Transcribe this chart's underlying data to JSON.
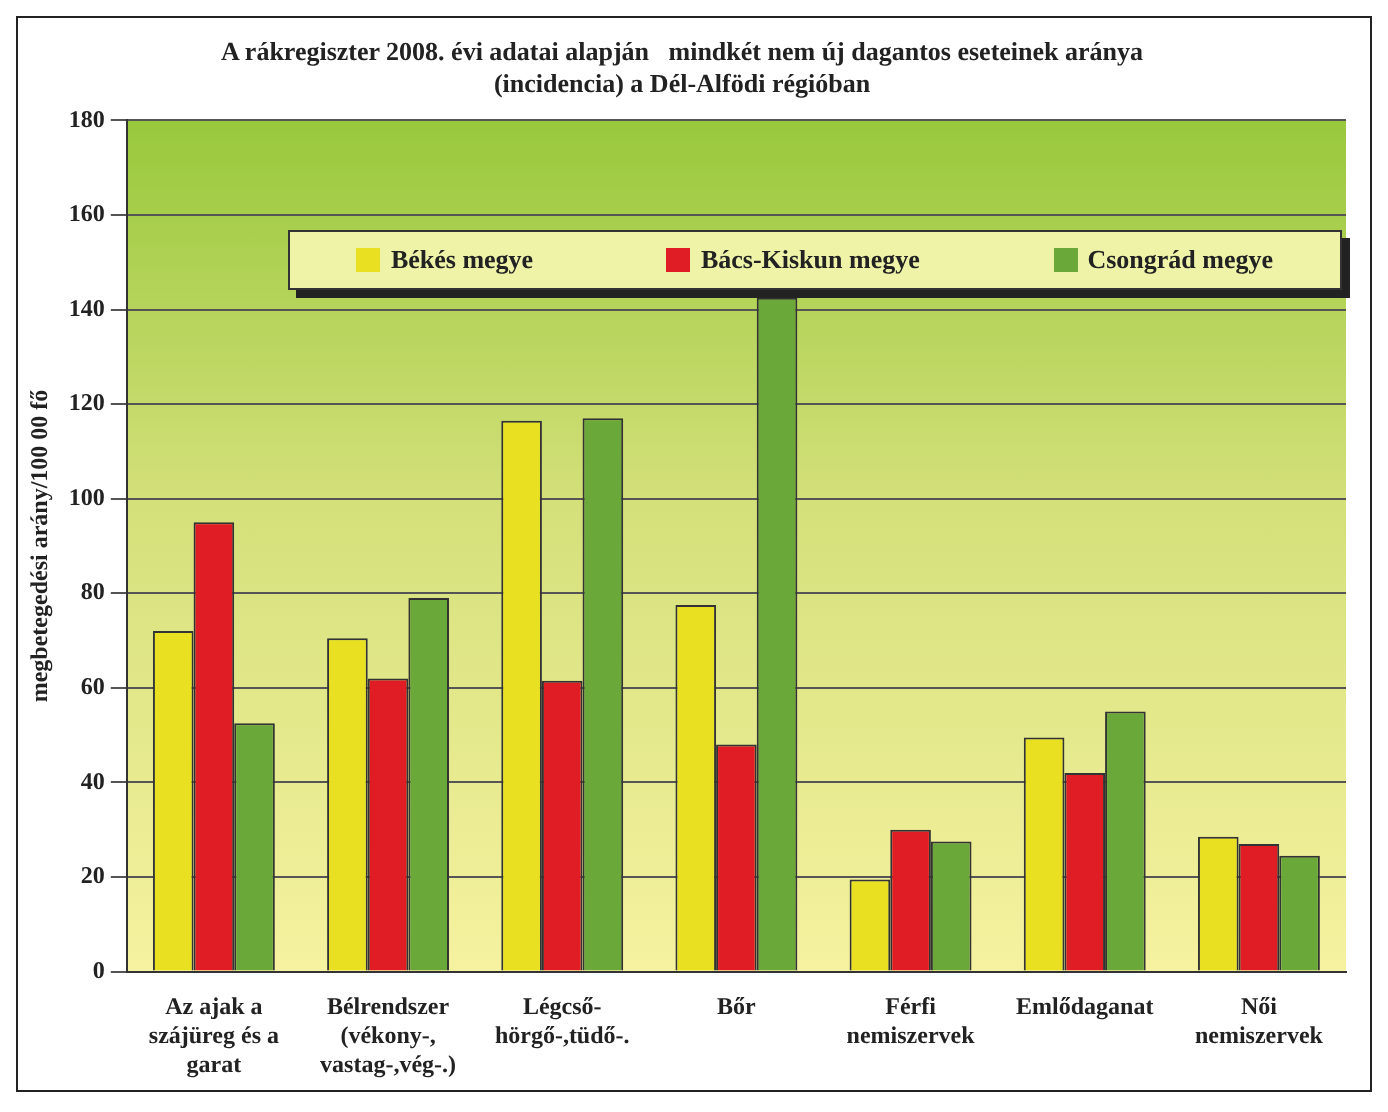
{
  "chart_data": {
    "type": "bar",
    "title": "A rákregiszter 2008. évi adatai alapján   mindkét nem új dagantos eseteinek aránya\n(incidencia) a Dél-Alfödi régióban",
    "ylabel": "megbetegedési arány/100 00 fő",
    "categories": [
      "Az ajak a\nszájüreg és a\ngarat",
      "Bélrendszer\n(vékony-,\nvastag-,vég-.)",
      "Légcső-\nhörgő-,tüdő-.",
      "Bőr",
      "Férfi\nnemiszervek",
      "Emlődaganat",
      "Női\nnemiszervek"
    ],
    "series": [
      {
        "name": "Békés megye",
        "color": "#e8e020",
        "values": [
          72,
          70.5,
          116.5,
          77.5,
          19.5,
          49.5,
          28.5
        ]
      },
      {
        "name": "Bács-Kiskun megye",
        "color": "#e01c24",
        "values": [
          95,
          62,
          61.5,
          48,
          30,
          42,
          27
        ]
      },
      {
        "name": "Csongrád megye",
        "color": "#6aa83a",
        "values": [
          52.5,
          79,
          117,
          142.5,
          27.5,
          55,
          24.5
        ]
      }
    ],
    "ylim": [
      0,
      180
    ],
    "yticks": [
      0,
      20,
      40,
      60,
      80,
      100,
      120,
      140,
      160,
      180
    ],
    "grid": "y",
    "legend": "top"
  }
}
